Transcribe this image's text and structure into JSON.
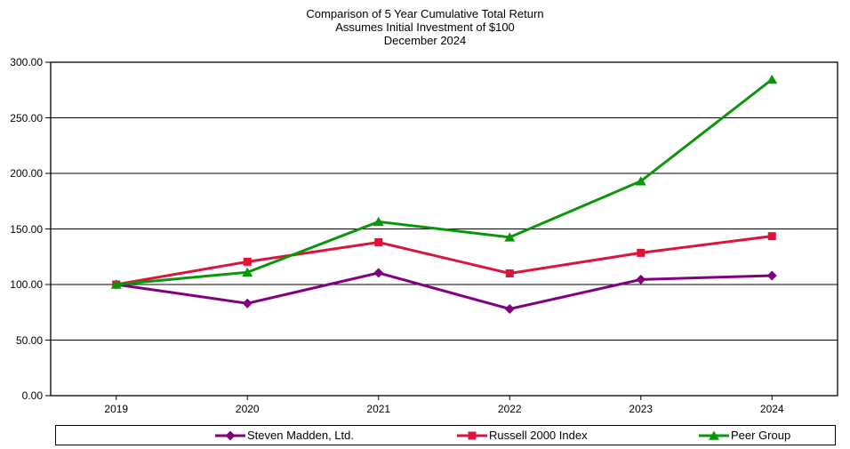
{
  "title": {
    "line1": "Comparison of 5 Year Cumulative Total Return",
    "line2": "Assumes Initial Investment of $100",
    "line3": "December 2024"
  },
  "chart_data": {
    "type": "line",
    "x": [
      "2019",
      "2020",
      "2021",
      "2022",
      "2023",
      "2024"
    ],
    "series": [
      {
        "name": "Steven Madden, Ltd.",
        "marker": "diamond",
        "color": "#800080",
        "values": [
          100,
          83,
          110.5,
          78,
          104.5,
          108
        ]
      },
      {
        "name": "Russell 2000 Index",
        "marker": "square",
        "color": "#DC143C",
        "values": [
          100,
          120.5,
          138,
          110,
          128.5,
          143.5
        ]
      },
      {
        "name": "Peer Group",
        "marker": "triangle",
        "color": "#0A9609",
        "values": [
          100,
          111,
          156.5,
          142.5,
          193,
          284.5
        ]
      }
    ],
    "ylim": [
      0,
      300
    ],
    "ytick_step": 50,
    "ytick_labels": [
      "0.00",
      "50.00",
      "100.00",
      "150.00",
      "200.00",
      "250.00",
      "300.00"
    ],
    "grid": true,
    "grid_color": "#000000",
    "axis_color": "#000000",
    "background": "#ffffff",
    "legend_position": "bottom"
  }
}
